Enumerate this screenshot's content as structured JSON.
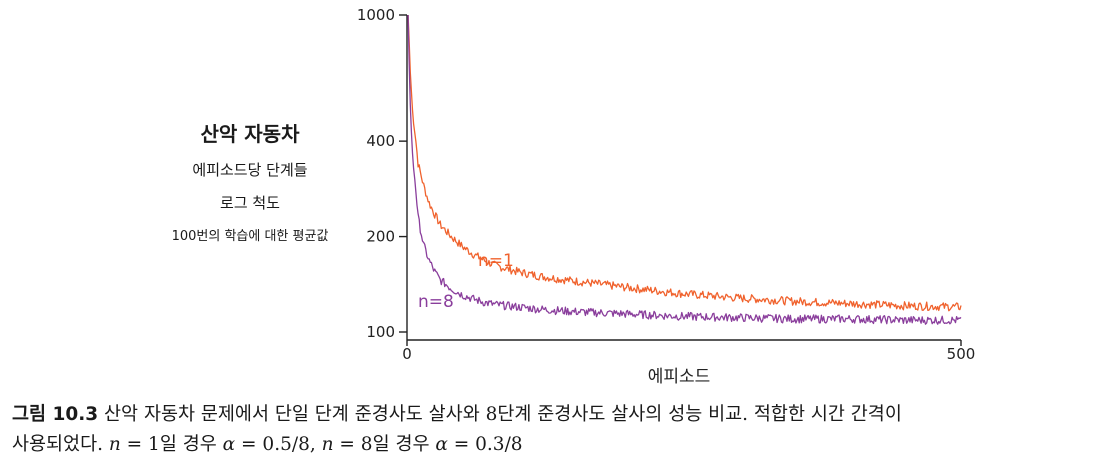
{
  "ylabel": {
    "title": "산악 자동차",
    "line1": "에피소드당 단계들",
    "line2": "로그 척도",
    "line3": "100번의 학습에 대한 평균값"
  },
  "caption": {
    "figure_label": "그림 10.3",
    "text1": "산악 자동차 문제에서 단일 단계 준경사도 살사와 8단계 준경사도 살사의 성능 비교. 적합한 시간 간격이",
    "text2_a": "사용되었다.",
    "n1": "n",
    "eq1": " = 1일 경우 ",
    "a1": "α",
    "val1": " = 0.5/8, ",
    "n2": "n",
    "eq2": " = 8일 경우 ",
    "a2": "α",
    "val2": " = 0.3/8"
  },
  "chart_data": {
    "type": "line",
    "title": "",
    "xlabel": "에피소드",
    "ylabel": "에피소드당 단계들",
    "yscale": "log",
    "xlim": [
      0,
      500
    ],
    "ylim": [
      100,
      1000
    ],
    "xticks": [
      0,
      500
    ],
    "yticks": [
      100,
      200,
      400,
      1000
    ],
    "grid": false,
    "series": [
      {
        "name": "n=1",
        "color": "#f0622d",
        "x": [
          1,
          2,
          3,
          5,
          8,
          10,
          15,
          20,
          25,
          30,
          40,
          50,
          60,
          70,
          80,
          100,
          120,
          150,
          200,
          250,
          300,
          350,
          400,
          450,
          500
        ],
        "y": [
          1000,
          820,
          660,
          500,
          400,
          340,
          290,
          255,
          235,
          218,
          200,
          186,
          176,
          168,
          162,
          155,
          150,
          145,
          138,
          132,
          128,
          125,
          123,
          121,
          120
        ]
      },
      {
        "name": "n=8",
        "color": "#8a3e9c",
        "x": [
          1,
          2,
          3,
          5,
          8,
          10,
          15,
          20,
          25,
          30,
          40,
          50,
          60,
          70,
          80,
          100,
          120,
          150,
          200,
          250,
          300,
          350,
          400,
          450,
          500
        ],
        "y": [
          1000,
          700,
          520,
          360,
          280,
          230,
          188,
          168,
          155,
          146,
          137,
          131,
          127,
          124,
          122,
          120,
          118,
          116,
          114,
          112,
          111,
          110,
          110,
          109,
          109
        ]
      }
    ]
  }
}
